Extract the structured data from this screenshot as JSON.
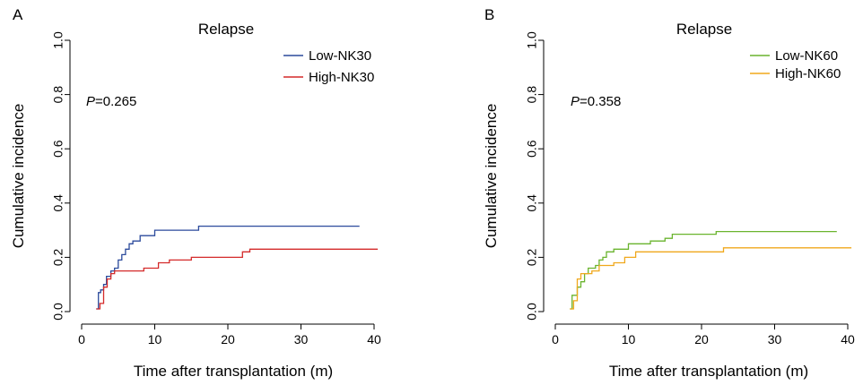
{
  "chart_data": [
    {
      "type": "line",
      "step": true,
      "panel_label": "A",
      "title": "Relapse",
      "xlabel": "Time after transplantation (m)",
      "ylabel": "Cumulative incidence",
      "xlim": [
        0,
        41
      ],
      "ylim": [
        0,
        1.0
      ],
      "x_ticks": [
        0,
        10,
        20,
        30,
        40
      ],
      "x_tick_labels": [
        "0",
        "10",
        "20",
        "30",
        "40"
      ],
      "y_ticks": [
        0,
        0.2,
        0.4,
        0.6,
        0.8,
        1.0
      ],
      "y_tick_labels": [
        "0.0",
        "0.2",
        "0.4",
        "0.6",
        "0.8",
        "1.0"
      ],
      "grid": false,
      "legend_position": "top-right",
      "annotation": {
        "italic": "P",
        "rest": "=0.265"
      },
      "series": [
        {
          "name": "Low-NK30",
          "color": "#2b4a9c",
          "x": [
            2.0,
            2.3,
            2.6,
            3.0,
            3.4,
            4.0,
            4.5,
            5.0,
            5.5,
            6.0,
            6.5,
            7.0,
            8.0,
            10.0,
            16.0,
            38.0
          ],
          "y": [
            0.01,
            0.07,
            0.08,
            0.1,
            0.13,
            0.15,
            0.16,
            0.19,
            0.21,
            0.23,
            0.25,
            0.26,
            0.28,
            0.3,
            0.315,
            0.315
          ]
        },
        {
          "name": "High-NK30",
          "color": "#d42a2a",
          "x": [
            2.0,
            2.5,
            3.0,
            3.5,
            4.0,
            4.5,
            8.5,
            10.5,
            12.0,
            15.0,
            22.0,
            23.0,
            40.5
          ],
          "y": [
            0.01,
            0.03,
            0.09,
            0.12,
            0.14,
            0.15,
            0.16,
            0.18,
            0.19,
            0.2,
            0.22,
            0.23,
            0.23
          ]
        }
      ]
    },
    {
      "type": "line",
      "step": true,
      "panel_label": "B",
      "title": "Relapse",
      "xlabel": "Time after transplantation (m)",
      "ylabel": "Cumulative incidence",
      "xlim": [
        0,
        41
      ],
      "ylim": [
        0,
        1.0
      ],
      "x_ticks": [
        0,
        10,
        20,
        30,
        40
      ],
      "x_tick_labels": [
        "0",
        "10",
        "20",
        "30",
        "40"
      ],
      "y_ticks": [
        0,
        0.2,
        0.4,
        0.6,
        0.8,
        1.0
      ],
      "y_tick_labels": [
        "0.0",
        "0.2",
        "0.4",
        "0.6",
        "0.8",
        "1.0"
      ],
      "grid": false,
      "legend_position": "top-right",
      "annotation": {
        "italic": "P",
        "rest": "=0.358"
      },
      "series": [
        {
          "name": "Low-NK60",
          "color": "#6ab42e",
          "x": [
            2.0,
            2.3,
            3.0,
            3.5,
            4.0,
            4.5,
            5.5,
            6.0,
            6.5,
            7.0,
            8.0,
            10.0,
            13.0,
            15.0,
            16.0,
            22.0,
            38.5
          ],
          "y": [
            0.01,
            0.06,
            0.09,
            0.11,
            0.14,
            0.16,
            0.17,
            0.19,
            0.2,
            0.22,
            0.23,
            0.25,
            0.26,
            0.27,
            0.285,
            0.295,
            0.295
          ]
        },
        {
          "name": "High-NK60",
          "color": "#f0a81c",
          "x": [
            2.0,
            2.5,
            3.0,
            3.5,
            5.0,
            6.0,
            8.0,
            9.5,
            11.0,
            23.0,
            40.5
          ],
          "y": [
            0.01,
            0.04,
            0.12,
            0.14,
            0.15,
            0.17,
            0.18,
            0.2,
            0.22,
            0.235,
            0.235
          ]
        }
      ]
    }
  ]
}
